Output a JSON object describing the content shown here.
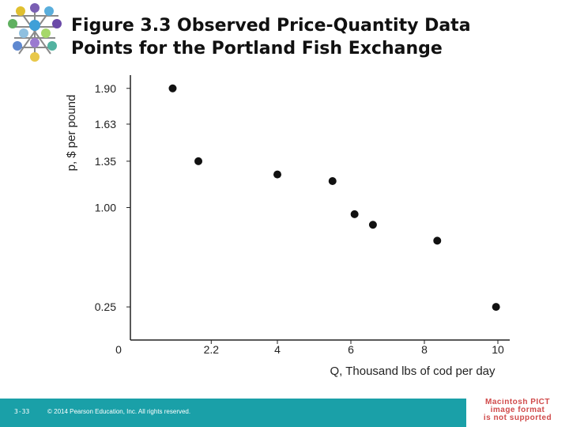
{
  "slide": {
    "title_line1": "Figure 3.3 Observed Price-Quantity Data",
    "title_line2": "Points for the Portland Fish Exchange",
    "slide_number": "3-33",
    "copyright": "© 2014 Pearson Education, Inc. All rights reserved.",
    "pict_notice": [
      "Macintosh PICT",
      "image format",
      "is not supported"
    ],
    "footer_color": "#1aa0a8"
  },
  "chart_data": {
    "type": "scatter",
    "title": "",
    "xlabel": "Q, Thousand lbs of cod per day",
    "ylabel": "p, $ per pound",
    "xlim": [
      0,
      10
    ],
    "ylim": [
      0,
      2.0
    ],
    "x_ticks": [
      0,
      2.2,
      4,
      6,
      8,
      10
    ],
    "x_tick_labels": [
      "0",
      "2.2",
      "4",
      "6",
      "8",
      "10"
    ],
    "y_ticks": [
      0.25,
      1.0,
      1.35,
      1.63,
      1.9
    ],
    "y_tick_labels": [
      "0.25",
      "1.00",
      "1.35",
      "1.63",
      "1.90"
    ],
    "grid": false,
    "points": [
      {
        "x": 1.15,
        "y": 1.9
      },
      {
        "x": 1.85,
        "y": 1.35
      },
      {
        "x": 4.0,
        "y": 1.25
      },
      {
        "x": 5.5,
        "y": 1.2
      },
      {
        "x": 6.1,
        "y": 0.95
      },
      {
        "x": 6.6,
        "y": 0.87
      },
      {
        "x": 8.35,
        "y": 0.75
      },
      {
        "x": 9.95,
        "y": 0.25
      }
    ]
  }
}
